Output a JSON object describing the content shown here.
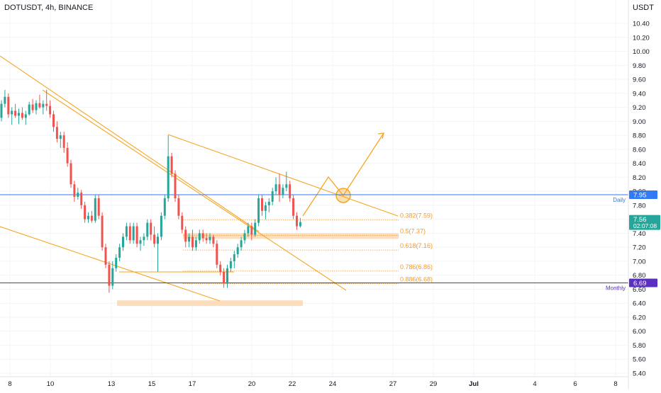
{
  "header": {
    "title": "DOTUSDT, 4h, BINANCE",
    "currency": "USDT"
  },
  "colors": {
    "up": "#26a69a",
    "down": "#ef5350",
    "trend": "#f5a623",
    "daily": "#3179f5",
    "monthly": "#5b2fc0",
    "zone": "#fbd7b0",
    "fib": "#f29a2e"
  },
  "chart_data": {
    "type": "candlestick",
    "symbol": "DOTUSDT",
    "interval": "4h",
    "exchange": "BINANCE",
    "ylim": [
      5.3,
      10.8
    ],
    "y_ticks": [
      "10.40",
      "10.20",
      "10.00",
      "9.80",
      "9.60",
      "9.40",
      "9.20",
      "9.00",
      "8.80",
      "8.60",
      "8.40",
      "8.20",
      "8.00",
      "7.80",
      "7.60",
      "7.40",
      "7.20",
      "7.00",
      "6.80",
      "6.60",
      "6.40",
      "6.20",
      "6.00",
      "5.80",
      "5.60",
      "5.40"
    ],
    "x_ticks": [
      "8",
      "10",
      "13",
      "15",
      "17",
      "20",
      "22",
      "24",
      "27",
      "29",
      "Jul",
      "4",
      "6",
      "8"
    ],
    "candles": [
      [
        9.05,
        9.3,
        9.0,
        9.25
      ],
      [
        9.25,
        9.45,
        9.2,
        9.35
      ],
      [
        9.35,
        9.4,
        9.05,
        9.1
      ],
      [
        9.1,
        9.2,
        8.95,
        9.15
      ],
      [
        9.15,
        9.25,
        9.05,
        9.08
      ],
      [
        9.08,
        9.18,
        8.96,
        9.12
      ],
      [
        9.12,
        9.2,
        9.02,
        9.05
      ],
      [
        9.05,
        9.15,
        8.95,
        9.1
      ],
      [
        9.1,
        9.28,
        9.08,
        9.24
      ],
      [
        9.24,
        9.32,
        9.12,
        9.16
      ],
      [
        9.16,
        9.3,
        9.1,
        9.26
      ],
      [
        9.26,
        9.38,
        9.18,
        9.2
      ],
      [
        9.2,
        9.3,
        9.1,
        9.25
      ],
      [
        9.25,
        9.45,
        9.15,
        9.22
      ],
      [
        9.22,
        9.3,
        9.05,
        9.1
      ],
      [
        9.1,
        9.15,
        8.85,
        8.92
      ],
      [
        8.92,
        9.0,
        8.7,
        8.75
      ],
      [
        8.75,
        8.85,
        8.62,
        8.8
      ],
      [
        8.8,
        8.85,
        8.55,
        8.62
      ],
      [
        8.62,
        8.7,
        8.35,
        8.4
      ],
      [
        8.4,
        8.45,
        8.05,
        8.1
      ],
      [
        8.1,
        8.15,
        7.85,
        7.92
      ],
      [
        7.92,
        8.05,
        7.88,
        7.98
      ],
      [
        7.98,
        8.02,
        7.75,
        7.8
      ],
      [
        7.8,
        7.85,
        7.55,
        7.6
      ],
      [
        7.6,
        7.7,
        7.55,
        7.65
      ],
      [
        7.65,
        7.72,
        7.55,
        7.58
      ],
      [
        7.58,
        7.95,
        7.55,
        7.9
      ],
      [
        7.9,
        7.95,
        7.6,
        7.65
      ],
      [
        7.65,
        7.7,
        7.15,
        7.2
      ],
      [
        7.2,
        7.25,
        6.9,
        6.95
      ],
      [
        6.95,
        7.0,
        6.55,
        6.65
      ],
      [
        6.65,
        7.0,
        6.6,
        6.9
      ],
      [
        6.9,
        7.1,
        6.85,
        7.05
      ],
      [
        7.05,
        7.25,
        7.0,
        7.2
      ],
      [
        7.2,
        7.4,
        7.15,
        7.35
      ],
      [
        7.35,
        7.55,
        7.3,
        7.5
      ],
      [
        7.5,
        7.55,
        7.25,
        7.3
      ],
      [
        7.3,
        7.55,
        7.25,
        7.5
      ],
      [
        7.5,
        7.55,
        7.2,
        7.25
      ],
      [
        7.25,
        7.35,
        7.15,
        7.3
      ],
      [
        7.3,
        7.4,
        7.22,
        7.35
      ],
      [
        7.35,
        7.6,
        7.3,
        7.55
      ],
      [
        7.55,
        7.6,
        7.3,
        7.38
      ],
      [
        7.38,
        7.5,
        7.2,
        7.25
      ],
      [
        7.25,
        7.4,
        6.85,
        7.35
      ],
      [
        7.35,
        7.7,
        7.3,
        7.65
      ],
      [
        7.65,
        7.95,
        7.6,
        7.9
      ],
      [
        7.9,
        8.8,
        7.85,
        8.5
      ],
      [
        8.5,
        8.55,
        8.2,
        8.25
      ],
      [
        8.25,
        8.3,
        7.85,
        7.9
      ],
      [
        7.9,
        7.95,
        7.6,
        7.65
      ],
      [
        7.65,
        7.7,
        7.4,
        7.45
      ],
      [
        7.45,
        7.5,
        7.2,
        7.28
      ],
      [
        7.28,
        7.4,
        7.2,
        7.35
      ],
      [
        7.35,
        7.45,
        7.15,
        7.2
      ],
      [
        7.2,
        7.35,
        7.15,
        7.3
      ],
      [
        7.3,
        7.45,
        7.25,
        7.4
      ],
      [
        7.4,
        7.45,
        7.28,
        7.33
      ],
      [
        7.33,
        7.4,
        7.25,
        7.3
      ],
      [
        7.3,
        7.4,
        7.25,
        7.35
      ],
      [
        7.35,
        7.38,
        7.2,
        7.25
      ],
      [
        7.25,
        7.3,
        6.9,
        6.95
      ],
      [
        6.95,
        7.0,
        6.8,
        6.85
      ],
      [
        6.85,
        6.9,
        6.62,
        6.68
      ],
      [
        6.68,
        6.95,
        6.62,
        6.9
      ],
      [
        6.9,
        7.05,
        6.85,
        7.0
      ],
      [
        7.0,
        7.15,
        6.9,
        7.1
      ],
      [
        7.1,
        7.25,
        7.05,
        7.2
      ],
      [
        7.2,
        7.35,
        7.15,
        7.3
      ],
      [
        7.3,
        7.45,
        7.25,
        7.4
      ],
      [
        7.4,
        7.55,
        7.35,
        7.5
      ],
      [
        7.5,
        7.55,
        7.3,
        7.38
      ],
      [
        7.38,
        7.6,
        7.35,
        7.55
      ],
      [
        7.55,
        7.95,
        7.5,
        7.9
      ],
      [
        7.9,
        7.95,
        7.65,
        7.72
      ],
      [
        7.72,
        7.85,
        7.6,
        7.8
      ],
      [
        7.8,
        7.9,
        7.7,
        7.85
      ],
      [
        7.85,
        8.05,
        7.8,
        8.0
      ],
      [
        8.0,
        8.2,
        7.95,
        8.1
      ],
      [
        8.1,
        8.25,
        7.85,
        7.95
      ],
      [
        7.95,
        8.1,
        7.9,
        8.05
      ],
      [
        8.05,
        8.28,
        8.0,
        8.1
      ],
      [
        8.1,
        8.15,
        7.85,
        7.9
      ],
      [
        7.9,
        7.95,
        7.6,
        7.65
      ],
      [
        7.65,
        7.7,
        7.45,
        7.5
      ],
      [
        7.5,
        7.62,
        7.48,
        7.56
      ]
    ],
    "fib_levels": [
      {
        "label": "0.382(7.59)",
        "value": 7.59
      },
      {
        "label": "0.5(7.37)",
        "value": 7.37
      },
      {
        "label": "0.618(7.16)",
        "value": 7.16
      },
      {
        "label": "0.786(6.86)",
        "value": 6.86
      },
      {
        "label": "0.886(6.68)",
        "value": 6.68
      }
    ],
    "horizontal_levels": [
      {
        "name": "Daily",
        "value": 7.95,
        "label": "7.95"
      },
      {
        "name": "Monthly",
        "value": 6.69,
        "label": "6.69"
      }
    ],
    "current_price": {
      "value": 7.56,
      "label": "7.56",
      "countdown": "02:07:08"
    },
    "zones": [
      {
        "y_top": 7.4,
        "y_bottom": 7.32
      },
      {
        "y_top": 6.44,
        "y_bottom": 6.36
      }
    ]
  }
}
